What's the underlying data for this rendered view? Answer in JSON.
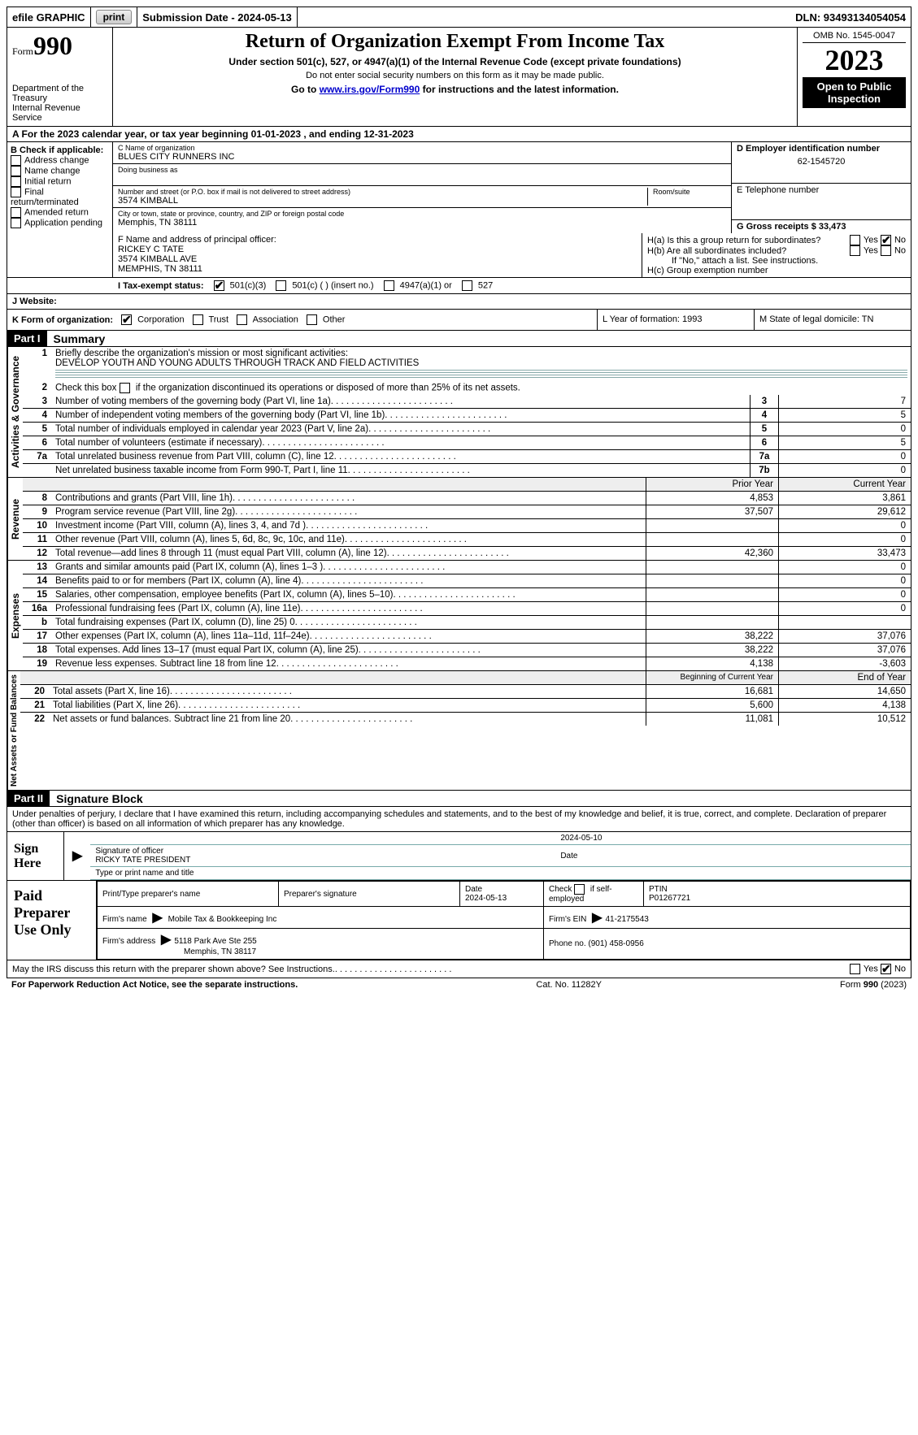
{
  "topbar": {
    "efile": "efile GRAPHIC",
    "print": "print",
    "submission_label": "Submission Date - 2024-05-13",
    "dln_label": "DLN: 93493134054054"
  },
  "header": {
    "form_word": "Form",
    "form_number": "990",
    "dept": "Department of the Treasury\nInternal Revenue Service",
    "title": "Return of Organization Exempt From Income Tax",
    "sub1": "Under section 501(c), 527, or 4947(a)(1) of the Internal Revenue Code (except private foundations)",
    "sub2": "Do not enter social security numbers on this form as it may be made public.",
    "sub3_pre": "Go to ",
    "sub3_link": "www.irs.gov/Form990",
    "sub3_post": " for instructions and the latest information.",
    "omb": "OMB No. 1545-0047",
    "year": "2023",
    "open": "Open to Public Inspection"
  },
  "line_a": "A For the 2023 calendar year, or tax year beginning 01-01-2023   , and ending 12-31-2023",
  "box_b": {
    "title": "B Check if applicable:",
    "opts": [
      "Address change",
      "Name change",
      "Initial return",
      "Final return/terminated",
      "Amended return",
      "Application pending"
    ]
  },
  "box_c": {
    "name_label": "C Name of organization",
    "name": "BLUES CITY RUNNERS INC",
    "dba_label": "Doing business as",
    "addr_label": "Number and street (or P.O. box if mail is not delivered to street address)",
    "addr": "3574 KIMBALL",
    "room_label": "Room/suite",
    "city_label": "City or town, state or province, country, and ZIP or foreign postal code",
    "city": "Memphis, TN  38111"
  },
  "box_d": {
    "label": "D Employer identification number",
    "ein": "62-1545720"
  },
  "box_e": {
    "label": "E Telephone number"
  },
  "box_g": {
    "label": "G Gross receipts $ 33,473"
  },
  "box_f": {
    "label": "F  Name and address of principal officer:",
    "lines": [
      "RICKEY C TATE",
      "3574 KIMBALL AVE",
      "MEMPHIS, TN  38111"
    ]
  },
  "box_h": {
    "ha": "H(a)  Is this a group return for subordinates?",
    "hb": "H(b)  Are all subordinates included?",
    "hb_note": "If \"No,\" attach a list. See instructions.",
    "hc": "H(c)  Group exemption number ",
    "yes": "Yes",
    "no": "No"
  },
  "tax_status": {
    "label_i": "I  Tax-exempt status:",
    "o1": "501(c)(3)",
    "o2": "501(c) (  ) (insert no.)",
    "o3": "4947(a)(1) or",
    "o4": "527"
  },
  "website": {
    "label": "J  Website: "
  },
  "k_row": {
    "label": "K Form of organization:",
    "opts": [
      "Corporation",
      "Trust",
      "Association",
      "Other"
    ],
    "l": "L Year of formation: 1993",
    "m": "M State of legal domicile: TN"
  },
  "part1": {
    "badge": "Part I",
    "title": "Summary"
  },
  "gov": {
    "label": "Activities & Governance",
    "l1": "Briefly describe the organization's mission or most significant activities:",
    "l1v": "DEVELOP YOUTH AND YOUNG ADULTS THROUGH TRACK AND FIELD ACTIVITIES",
    "l2": "Check this box      if the organization discontinued its operations or disposed of more than 25% of its net assets.",
    "rows": [
      {
        "n": "3",
        "t": "Number of voting members of the governing body (Part VI, line 1a)",
        "b": "3",
        "v": "7"
      },
      {
        "n": "4",
        "t": "Number of independent voting members of the governing body (Part VI, line 1b)",
        "b": "4",
        "v": "5"
      },
      {
        "n": "5",
        "t": "Total number of individuals employed in calendar year 2023 (Part V, line 2a)",
        "b": "5",
        "v": "0"
      },
      {
        "n": "6",
        "t": "Total number of volunteers (estimate if necessary)",
        "b": "6",
        "v": "5"
      },
      {
        "n": "7a",
        "t": "Total unrelated business revenue from Part VIII, column (C), line 12",
        "b": "7a",
        "v": "0"
      },
      {
        "n": "",
        "t": "Net unrelated business taxable income from Form 990-T, Part I, line 11",
        "b": "7b",
        "v": "0"
      }
    ]
  },
  "rev": {
    "label": "Revenue",
    "prior_hdr": "Prior Year",
    "curr_hdr": "Current Year",
    "rows": [
      {
        "n": "8",
        "t": "Contributions and grants (Part VIII, line 1h)",
        "p": "4,853",
        "c": "3,861"
      },
      {
        "n": "9",
        "t": "Program service revenue (Part VIII, line 2g)",
        "p": "37,507",
        "c": "29,612"
      },
      {
        "n": "10",
        "t": "Investment income (Part VIII, column (A), lines 3, 4, and 7d )",
        "p": "",
        "c": "0"
      },
      {
        "n": "11",
        "t": "Other revenue (Part VIII, column (A), lines 5, 6d, 8c, 9c, 10c, and 11e)",
        "p": "",
        "c": "0"
      },
      {
        "n": "12",
        "t": "Total revenue—add lines 8 through 11 (must equal Part VIII, column (A), line 12)",
        "p": "42,360",
        "c": "33,473"
      }
    ]
  },
  "exp": {
    "label": "Expenses",
    "rows": [
      {
        "n": "13",
        "t": "Grants and similar amounts paid (Part IX, column (A), lines 1–3 )",
        "p": "",
        "c": "0"
      },
      {
        "n": "14",
        "t": "Benefits paid to or for members (Part IX, column (A), line 4)",
        "p": "",
        "c": "0"
      },
      {
        "n": "15",
        "t": "Salaries, other compensation, employee benefits (Part IX, column (A), lines 5–10)",
        "p": "",
        "c": "0"
      },
      {
        "n": "16a",
        "t": "Professional fundraising fees (Part IX, column (A), line 11e)",
        "p": "",
        "c": "0"
      },
      {
        "n": "b",
        "t": "Total fundraising expenses (Part IX, column (D), line 25) 0",
        "p": "shaded",
        "c": "shaded"
      },
      {
        "n": "17",
        "t": "Other expenses (Part IX, column (A), lines 11a–11d, 11f–24e)",
        "p": "38,222",
        "c": "37,076"
      },
      {
        "n": "18",
        "t": "Total expenses. Add lines 13–17 (must equal Part IX, column (A), line 25)",
        "p": "38,222",
        "c": "37,076"
      },
      {
        "n": "19",
        "t": "Revenue less expenses. Subtract line 18 from line 12",
        "p": "4,138",
        "c": "-3,603"
      }
    ]
  },
  "net": {
    "label": "Net Assets or Fund Balances",
    "beg_hdr": "Beginning of Current Year",
    "end_hdr": "End of Year",
    "rows": [
      {
        "n": "20",
        "t": "Total assets (Part X, line 16)",
        "p": "16,681",
        "c": "14,650"
      },
      {
        "n": "21",
        "t": "Total liabilities (Part X, line 26)",
        "p": "5,600",
        "c": "4,138"
      },
      {
        "n": "22",
        "t": "Net assets or fund balances. Subtract line 21 from line 20",
        "p": "11,081",
        "c": "10,512"
      }
    ]
  },
  "part2": {
    "badge": "Part II",
    "title": "Signature Block"
  },
  "perjury": "Under penalties of perjury, I declare that I have examined this return, including accompanying schedules and statements, and to the best of my knowledge and belief, it is true, correct, and complete. Declaration of preparer (other than officer) is based on all information of which preparer has any knowledge.",
  "sign": {
    "left": "Sign Here",
    "date": "2024-05-10",
    "sig_label": "Signature of officer",
    "name": "RICKY TATE PRESIDENT",
    "type_label": "Type or print name and title",
    "date_label": "Date"
  },
  "prep": {
    "left": "Paid Preparer Use Only",
    "c1": "Print/Type preparer's name",
    "c2": "Preparer's signature",
    "c3_label": "Date",
    "c3": "2024-05-13",
    "c4": "Check        if self-employed",
    "c5_label": "PTIN",
    "c5": "P01267721",
    "firm_label": "Firm's name   ",
    "firm": "Mobile Tax & Bookkeeping Inc",
    "fein_label": "Firm's EIN  ",
    "fein": "41-2175543",
    "addr_label": "Firm's address ",
    "addr1": "5118 Park Ave Ste 255",
    "addr2": "Memphis, TN  38117",
    "phone_label": "Phone no. ",
    "phone": "(901) 458-0956"
  },
  "discuss": {
    "q": "May the IRS discuss this return with the preparer shown above? See Instructions.",
    "yes": "Yes",
    "no": "No"
  },
  "footer": {
    "left": "For Paperwork Reduction Act Notice, see the separate instructions.",
    "mid": "Cat. No. 11282Y",
    "right_pre": "Form ",
    "right_form": "990",
    "right_post": " (2023)"
  }
}
